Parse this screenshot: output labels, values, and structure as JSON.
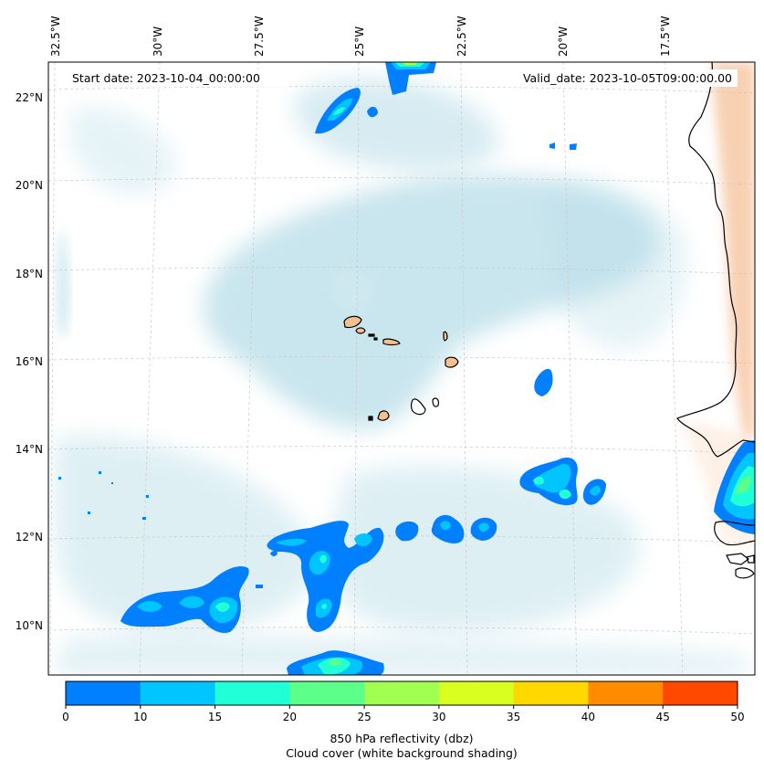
{
  "map": {
    "start_date": "Start date: 2023-10-04_00:00:00",
    "valid_date": "Valid_date: 2023-10-05T09:00:00.00",
    "lon_labels": [
      "32.5°W",
      "30°W",
      "27.5°W",
      "25°W",
      "22.5°W",
      "20°W",
      "17.5°W"
    ],
    "lat_labels": [
      "22°N",
      "20°N",
      "18°N",
      "16°N",
      "14°N",
      "12°N",
      "10°N"
    ],
    "extent": {
      "lon_min": -32.5,
      "lon_max": -16.0,
      "lat_min": 8.9,
      "lat_max": 22.8
    },
    "gridlines": true,
    "colors": {
      "ocean": "#ffffff",
      "cloud": "#b8dde8",
      "land_heat": "#f7c5a0",
      "island_fill": "#f5c090",
      "coastline": "#000000"
    }
  },
  "colorbar": {
    "ticks": [
      "0",
      "10",
      "15",
      "20",
      "25",
      "30",
      "35",
      "40",
      "45",
      "50"
    ],
    "colors": [
      "#0080ff",
      "#00c5ff",
      "#20ffd5",
      "#5cff8a",
      "#a0ff50",
      "#d8ff20",
      "#ffd800",
      "#ff8c00",
      "#ff4800"
    ],
    "label": "850 hPa reflectivity (dbz)",
    "sublabel": "Cloud cover (white background shading)"
  }
}
